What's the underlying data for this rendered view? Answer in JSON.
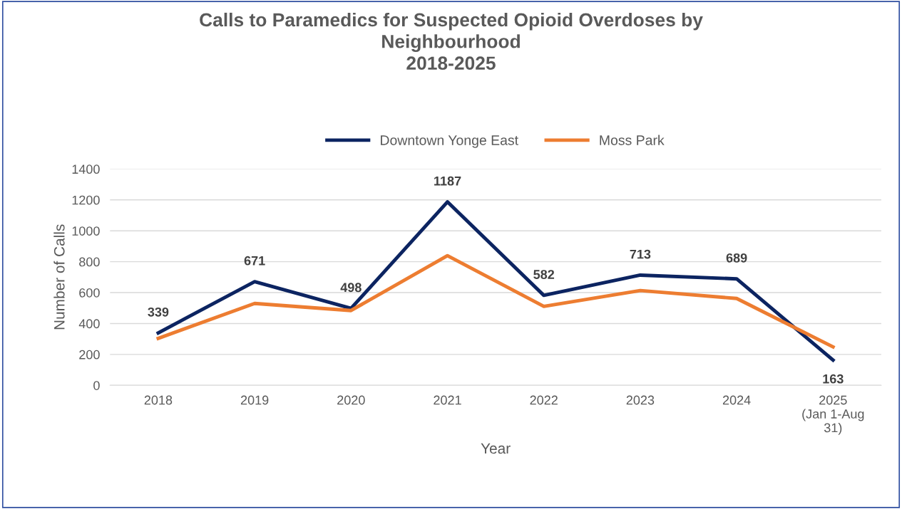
{
  "chart_data": {
    "type": "line",
    "title": "Calls to Paramedics for Suspected Opioid Overdoses by\nNeighbourhood\n2018-2025",
    "xlabel": "Year",
    "ylabel": "Number of Calls",
    "categories": [
      "2018",
      "2019",
      "2020",
      "2021",
      "2022",
      "2023",
      "2024",
      "2025\n(Jan 1-Aug\n31)"
    ],
    "series": [
      {
        "name": "Downtown Yonge East",
        "color": "#0c2461",
        "values": [
          339,
          671,
          498,
          1187,
          582,
          713,
          689,
          163
        ],
        "value_labels": [
          "339",
          "671",
          "498",
          "1187",
          "582",
          "713",
          "689",
          "163"
        ]
      },
      {
        "name": "Moss Park",
        "color": "#ed7d31",
        "values": [
          304,
          530,
          484,
          839,
          511,
          613,
          562,
          249
        ]
      }
    ],
    "ylim": [
      0,
      1400
    ],
    "yticks": [
      0,
      200,
      400,
      600,
      800,
      1000,
      1200,
      1400
    ],
    "grid": "y",
    "legend": "top",
    "marker": "none",
    "line_style": "solid"
  }
}
